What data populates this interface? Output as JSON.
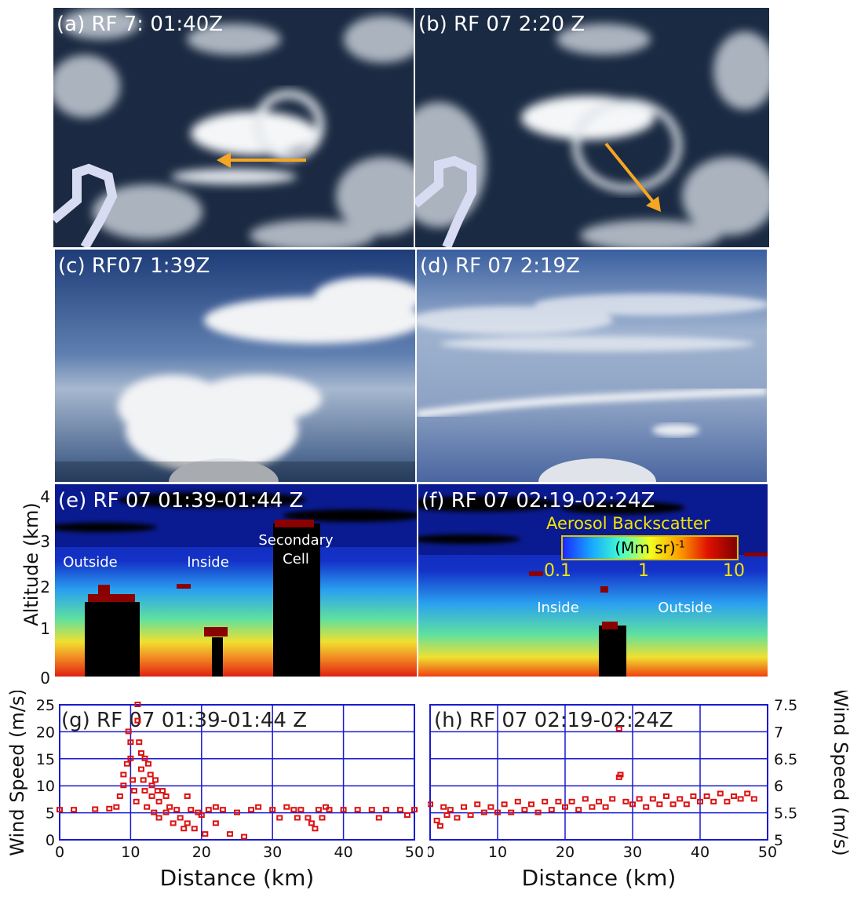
{
  "panels": {
    "a": "(a) RF 7: 01:40Z",
    "b": "(b) RF 07 2:20 Z",
    "c": "(c) RF07 1:39Z",
    "d": "(d) RF 07 2:19Z",
    "e": "(e) RF 07 01:39-01:44 Z",
    "f": "(f) RF 07 02:19-02:24Z",
    "g": "(g) RF 07 01:39-01:44 Z",
    "h": "(h) RF 07 02:19-02:24Z"
  },
  "lidar": {
    "ylabel": "Altitude (km)",
    "yticks": [
      "0",
      "1",
      "2",
      "3",
      "4"
    ],
    "e_annotations": {
      "outside": "Outside",
      "inside": "Inside",
      "secondary": "Secondary",
      "cell": "Cell"
    },
    "f_annotations": {
      "inside": "Inside",
      "outside": "Outside"
    },
    "colorbar": {
      "title": "Aerosol Backscatter",
      "unit": "(Mm sr)",
      "unit_exp": "-1",
      "ticks": [
        "0.1",
        "1",
        "10"
      ]
    }
  },
  "chart_data": [
    {
      "type": "scatter",
      "panel": "g",
      "xlabel": "Distance (km)",
      "ylabel": "Wind Speed (m/s)",
      "xlim": [
        0,
        50
      ],
      "ylim": [
        0,
        25
      ],
      "xticks": [
        0,
        10,
        20,
        30,
        40,
        50
      ],
      "yticks": [
        0,
        5,
        10,
        15,
        20,
        25
      ],
      "color": "#dd1111",
      "points": [
        [
          0,
          5.5
        ],
        [
          2,
          5.5
        ],
        [
          5,
          5.6
        ],
        [
          7,
          5.7
        ],
        [
          8,
          6
        ],
        [
          8.5,
          8
        ],
        [
          9,
          10
        ],
        [
          9,
          12
        ],
        [
          9.5,
          14
        ],
        [
          9.7,
          20
        ],
        [
          10,
          18
        ],
        [
          10,
          15
        ],
        [
          10.3,
          11
        ],
        [
          10.5,
          9
        ],
        [
          10.8,
          7
        ],
        [
          11,
          22
        ],
        [
          11,
          25
        ],
        [
          11.2,
          18
        ],
        [
          11.5,
          16
        ],
        [
          11.5,
          13
        ],
        [
          11.8,
          11
        ],
        [
          12,
          15
        ],
        [
          12,
          9
        ],
        [
          12.3,
          6
        ],
        [
          12.5,
          14
        ],
        [
          12.8,
          12
        ],
        [
          13,
          10
        ],
        [
          13,
          8
        ],
        [
          13.3,
          5
        ],
        [
          13.5,
          11
        ],
        [
          13.8,
          9
        ],
        [
          14,
          7
        ],
        [
          14,
          4
        ],
        [
          14.5,
          9
        ],
        [
          15,
          8
        ],
        [
          15,
          5
        ],
        [
          15.5,
          6
        ],
        [
          16,
          3
        ],
        [
          16.5,
          5.5
        ],
        [
          17,
          4
        ],
        [
          17.5,
          2
        ],
        [
          18,
          8
        ],
        [
          18,
          3
        ],
        [
          18.5,
          5.5
        ],
        [
          19,
          2
        ],
        [
          19.5,
          5
        ],
        [
          20,
          4.5
        ],
        [
          20.5,
          1
        ],
        [
          21,
          5.5
        ],
        [
          22,
          6
        ],
        [
          22,
          3
        ],
        [
          23,
          5.5
        ],
        [
          24,
          1
        ],
        [
          25,
          5
        ],
        [
          26,
          0.5
        ],
        [
          27,
          5.5
        ],
        [
          28,
          6
        ],
        [
          30,
          5.5
        ],
        [
          31,
          4
        ],
        [
          32,
          6
        ],
        [
          33,
          5.5
        ],
        [
          33.5,
          4
        ],
        [
          34,
          5.5
        ],
        [
          35,
          4
        ],
        [
          35.5,
          3
        ],
        [
          36,
          2
        ],
        [
          36.5,
          5.5
        ],
        [
          37,
          4
        ],
        [
          37.5,
          6
        ],
        [
          38,
          5.5
        ],
        [
          40,
          5.5
        ],
        [
          42,
          5.5
        ],
        [
          44,
          5.5
        ],
        [
          45,
          4
        ],
        [
          46,
          5.5
        ],
        [
          48,
          5.5
        ],
        [
          49,
          4.5
        ],
        [
          50,
          5.5
        ]
      ]
    },
    {
      "type": "scatter",
      "panel": "h",
      "xlabel": "Distance (km)",
      "ylabel": "Wind Speed (m/s)",
      "xlim": [
        0,
        50
      ],
      "ylim": [
        5,
        7.5
      ],
      "xticks": [
        0,
        10,
        20,
        30,
        40,
        50
      ],
      "yticks": [
        5,
        5.5,
        6,
        6.5,
        7,
        7.5
      ],
      "color": "#dd1111",
      "points": [
        [
          0,
          5.65
        ],
        [
          1,
          5.35
        ],
        [
          1.5,
          5.25
        ],
        [
          2,
          5.6
        ],
        [
          2.5,
          5.45
        ],
        [
          3,
          5.55
        ],
        [
          4,
          5.4
        ],
        [
          5,
          5.6
        ],
        [
          6,
          5.45
        ],
        [
          7,
          5.65
        ],
        [
          8,
          5.5
        ],
        [
          9,
          5.6
        ],
        [
          10,
          5.5
        ],
        [
          11,
          5.65
        ],
        [
          12,
          5.5
        ],
        [
          13,
          5.7
        ],
        [
          14,
          5.55
        ],
        [
          15,
          5.65
        ],
        [
          16,
          5.5
        ],
        [
          17,
          5.7
        ],
        [
          18,
          5.55
        ],
        [
          19,
          5.7
        ],
        [
          20,
          5.6
        ],
        [
          21,
          5.7
        ],
        [
          22,
          5.55
        ],
        [
          23,
          5.75
        ],
        [
          24,
          5.6
        ],
        [
          25,
          5.7
        ],
        [
          26,
          5.6
        ],
        [
          27,
          5.75
        ],
        [
          28,
          6.15
        ],
        [
          28,
          7.05
        ],
        [
          28.2,
          6.2
        ],
        [
          29,
          5.7
        ],
        [
          30,
          5.65
        ],
        [
          31,
          5.75
        ],
        [
          32,
          5.6
        ],
        [
          33,
          5.75
        ],
        [
          34,
          5.65
        ],
        [
          35,
          5.8
        ],
        [
          36,
          5.65
        ],
        [
          37,
          5.75
        ],
        [
          38,
          5.65
        ],
        [
          39,
          5.8
        ],
        [
          40,
          5.7
        ],
        [
          41,
          5.8
        ],
        [
          42,
          5.7
        ],
        [
          43,
          5.85
        ],
        [
          44,
          5.7
        ],
        [
          45,
          5.8
        ],
        [
          46,
          5.75
        ],
        [
          47,
          5.85
        ],
        [
          48,
          5.75
        ]
      ]
    }
  ]
}
